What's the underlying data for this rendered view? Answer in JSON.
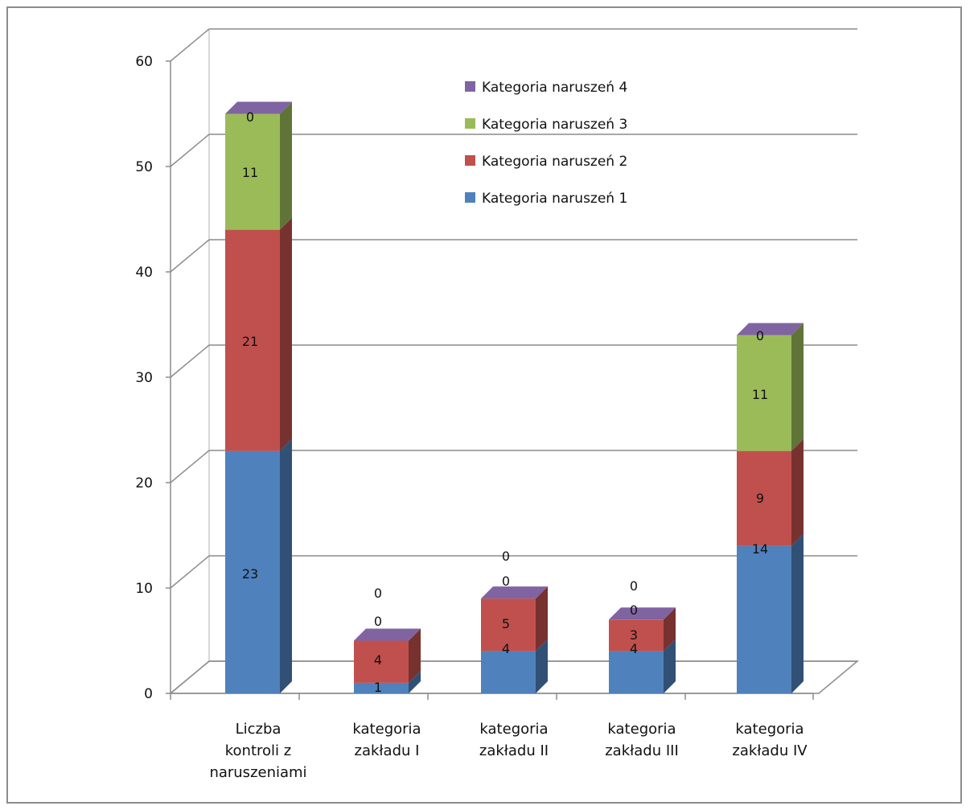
{
  "chart_data": {
    "type": "bar",
    "stacked": true,
    "three_d": true,
    "categories": [
      [
        "Liczba",
        "kontroli z",
        "naruszeniami"
      ],
      [
        "kategoria",
        "zakładu I"
      ],
      [
        "kategoria",
        "zakładu II"
      ],
      [
        "kategoria",
        "zakładu III"
      ],
      [
        "kategoria",
        "zakładu IV"
      ]
    ],
    "series": [
      {
        "name": "Kategoria naruszeń 1",
        "values": [
          23,
          1,
          4,
          4,
          14
        ],
        "color": "#4f81bd"
      },
      {
        "name": "Kategoria naruszeń 2",
        "values": [
          21,
          4,
          5,
          3,
          9
        ],
        "color": "#c0504d"
      },
      {
        "name": "Kategoria naruszeń 3",
        "values": [
          11,
          0,
          0,
          0,
          11
        ],
        "color": "#9bbb59"
      },
      {
        "name": "Kategoria naruszeń 4",
        "values": [
          0,
          0,
          0,
          0,
          0
        ],
        "color": "#8064a2"
      }
    ],
    "ylim": [
      0,
      60
    ],
    "yticks": [
      "0",
      "10",
      "20",
      "30",
      "40",
      "50",
      "60"
    ],
    "grid": true,
    "legend": "top-center",
    "title": "",
    "xlabel": "",
    "ylabel": ""
  }
}
